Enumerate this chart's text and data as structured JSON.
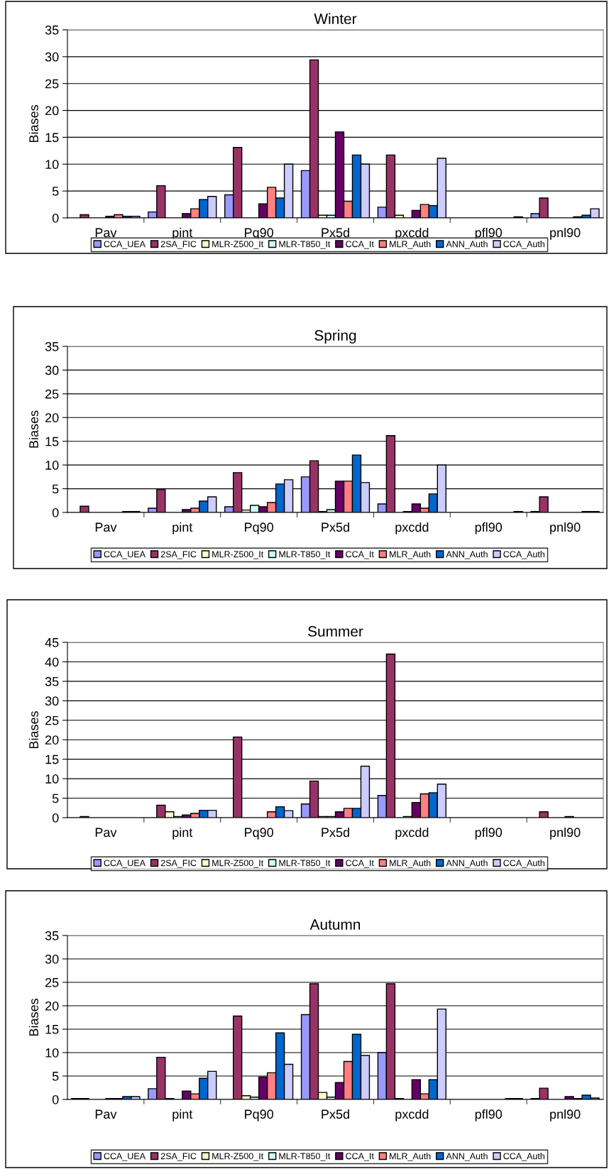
{
  "chart_data": [
    {
      "type": "bar",
      "title": "Winter",
      "ylabel": "Biases",
      "categories": [
        "Pav",
        "pint",
        "Pq90",
        "Px5d",
        "pxcdd",
        "pfl90",
        "pnl90"
      ],
      "ylim": [
        0,
        35
      ],
      "yticks": [
        0,
        5,
        10,
        15,
        20,
        25,
        30,
        35
      ],
      "grid": "y",
      "legend": "bottom",
      "series": [
        {
          "name": "CCA_UEA",
          "color": "#9999ff",
          "values": [
            null,
            1.1,
            4.3,
            8.8,
            2.0,
            null,
            0.8
          ]
        },
        {
          "name": "2SA_FIC",
          "color": "#993366",
          "values": [
            0.6,
            6.0,
            13.1,
            29.4,
            11.7,
            null,
            3.7
          ]
        },
        {
          "name": "MLR-Z500_It",
          "color": "#ffffcc",
          "values": [
            null,
            null,
            null,
            0.5,
            0.5,
            null,
            null
          ]
        },
        {
          "name": "MLR-T850_It",
          "color": "#ccffff",
          "values": [
            null,
            null,
            null,
            0.5,
            null,
            null,
            null
          ]
        },
        {
          "name": "CCA_It",
          "color": "#660066",
          "values": [
            0.3,
            0.8,
            2.6,
            16.0,
            1.4,
            null,
            null
          ]
        },
        {
          "name": "MLR_Auth",
          "color": "#ff8080",
          "values": [
            0.6,
            1.7,
            5.7,
            3.1,
            2.5,
            null,
            0.2
          ]
        },
        {
          "name": "ANN_Auth",
          "color": "#0066cc",
          "values": [
            0.3,
            3.4,
            3.7,
            11.7,
            2.3,
            null,
            0.5
          ]
        },
        {
          "name": "CCA_Auth",
          "color": "#ccccff",
          "values": [
            0.3,
            4.0,
            10.0,
            10.0,
            11.1,
            0.2,
            1.7
          ]
        }
      ]
    },
    {
      "type": "bar",
      "title": "Spring",
      "ylabel": "Biases",
      "categories": [
        "Pav",
        "pint",
        "Pq90",
        "Px5d",
        "pxcdd",
        "pfl90",
        "pnl90"
      ],
      "ylim": [
        0,
        35
      ],
      "yticks": [
        0,
        5,
        10,
        15,
        20,
        25,
        30,
        35
      ],
      "grid": "y",
      "legend": "bottom",
      "series": [
        {
          "name": "CCA_UEA",
          "color": "#9999ff",
          "values": [
            null,
            0.9,
            1.2,
            7.5,
            1.8,
            null,
            0.2
          ]
        },
        {
          "name": "2SA_FIC",
          "color": "#993366",
          "values": [
            1.3,
            4.8,
            8.4,
            10.9,
            16.2,
            null,
            3.3
          ]
        },
        {
          "name": "MLR-Z500_It",
          "color": "#ffffcc",
          "values": [
            null,
            null,
            0.5,
            0.2,
            null,
            null,
            null
          ]
        },
        {
          "name": "MLR-T850_It",
          "color": "#ccffff",
          "values": [
            null,
            null,
            1.5,
            0.6,
            0.2,
            null,
            null
          ]
        },
        {
          "name": "CCA_It",
          "color": "#660066",
          "values": [
            null,
            0.6,
            1.2,
            6.6,
            1.8,
            null,
            null
          ]
        },
        {
          "name": "MLR_Auth",
          "color": "#ff8080",
          "values": [
            null,
            0.9,
            2.1,
            6.6,
            0.9,
            null,
            null
          ]
        },
        {
          "name": "ANN_Auth",
          "color": "#0066cc",
          "values": [
            0.2,
            2.4,
            6.0,
            12.1,
            3.9,
            null,
            0.2
          ]
        },
        {
          "name": "CCA_Auth",
          "color": "#ccccff",
          "values": [
            0.2,
            3.3,
            6.9,
            6.3,
            10.0,
            0.2,
            0.2
          ]
        }
      ]
    },
    {
      "type": "bar",
      "title": "Summer",
      "ylabel": "Biases",
      "categories": [
        "Pav",
        "pint",
        "Pq90",
        "Px5d",
        "pxcdd",
        "pfl90",
        "pnl90"
      ],
      "ylim": [
        0,
        45
      ],
      "yticks": [
        0,
        5,
        10,
        15,
        20,
        25,
        30,
        35,
        40,
        45
      ],
      "grid": "y",
      "legend": "bottom",
      "series": [
        {
          "name": "CCA_UEA",
          "color": "#9999ff",
          "values": [
            null,
            null,
            null,
            3.5,
            5.7,
            null,
            null
          ]
        },
        {
          "name": "2SA_FIC",
          "color": "#993366",
          "values": [
            0.3,
            3.2,
            20.7,
            9.4,
            42.0,
            null,
            1.5
          ]
        },
        {
          "name": "MLR-Z500_It",
          "color": "#ffffcc",
          "values": [
            null,
            1.5,
            null,
            0.3,
            null,
            null,
            null
          ]
        },
        {
          "name": "MLR-T850_It",
          "color": "#ccffff",
          "values": [
            null,
            0.3,
            null,
            0.3,
            0.3,
            null,
            null
          ]
        },
        {
          "name": "CCA_It",
          "color": "#660066",
          "values": [
            null,
            0.7,
            null,
            1.5,
            3.9,
            null,
            0.3
          ]
        },
        {
          "name": "MLR_Auth",
          "color": "#ff8080",
          "values": [
            null,
            1.1,
            1.5,
            2.4,
            6.1,
            null,
            null
          ]
        },
        {
          "name": "ANN_Auth",
          "color": "#0066cc",
          "values": [
            null,
            1.9,
            2.8,
            2.4,
            6.4,
            null,
            null
          ]
        },
        {
          "name": "CCA_Auth",
          "color": "#ccccff",
          "values": [
            null,
            1.9,
            1.8,
            13.2,
            8.6,
            null,
            null
          ]
        }
      ]
    },
    {
      "type": "bar",
      "title": "Autumn",
      "ylabel": "Biases",
      "categories": [
        "Pav",
        "pint",
        "Pq90",
        "Px5d",
        "pxcdd",
        "pfl90",
        "pnl90"
      ],
      "ylim": [
        0,
        35
      ],
      "yticks": [
        0,
        5,
        10,
        15,
        20,
        25,
        30,
        35
      ],
      "grid": "y",
      "legend": "bottom",
      "series": [
        {
          "name": "CCA_UEA",
          "color": "#9999ff",
          "values": [
            0.2,
            2.3,
            null,
            18.1,
            10.0,
            null,
            0.2
          ]
        },
        {
          "name": "2SA_FIC",
          "color": "#993366",
          "values": [
            0.2,
            9.0,
            17.8,
            24.7,
            24.7,
            null,
            2.4
          ]
        },
        {
          "name": "MLR-Z500_It",
          "color": "#ffffcc",
          "values": [
            null,
            0.2,
            0.8,
            1.5,
            0.2,
            null,
            null
          ]
        },
        {
          "name": "MLR-T850_It",
          "color": "#ccffff",
          "values": [
            null,
            null,
            0.5,
            0.5,
            null,
            null,
            null
          ]
        },
        {
          "name": "CCA_It",
          "color": "#660066",
          "values": [
            0.2,
            1.8,
            4.8,
            3.6,
            4.2,
            null,
            0.6
          ]
        },
        {
          "name": "MLR_Auth",
          "color": "#ff8080",
          "values": [
            0.2,
            1.2,
            5.7,
            8.1,
            1.2,
            null,
            0.2
          ]
        },
        {
          "name": "ANN_Auth",
          "color": "#0066cc",
          "values": [
            0.6,
            4.5,
            14.2,
            13.9,
            4.2,
            0.2,
            0.9
          ]
        },
        {
          "name": "CCA_Auth",
          "color": "#ccccff",
          "values": [
            0.6,
            6.0,
            7.5,
            9.4,
            19.3,
            0.2,
            0.3
          ]
        }
      ]
    }
  ]
}
